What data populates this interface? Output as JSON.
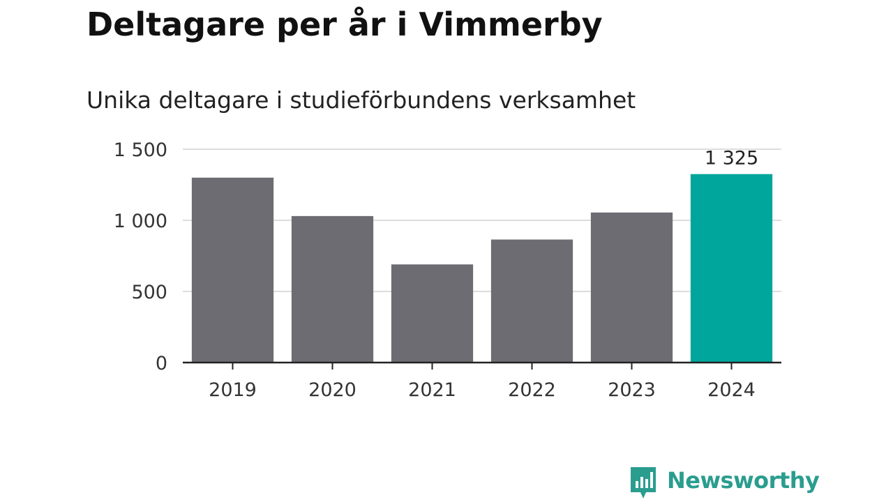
{
  "header": {
    "title": "Deltagare per år i Vimmerby",
    "subtitle": "Unika deltagare i studieförbundens verksamhet"
  },
  "brand": {
    "name": "Newsworthy",
    "icon": "bar-chart-speech-bubble-icon",
    "color": "#2a9d8f"
  },
  "chart_data": {
    "type": "bar",
    "title": "Deltagare per år i Vimmerby",
    "subtitle": "Unika deltagare i studieförbundens verksamhet",
    "xlabel": "",
    "ylabel": "",
    "categories": [
      "2019",
      "2020",
      "2021",
      "2022",
      "2023",
      "2024"
    ],
    "values": [
      1300,
      1030,
      690,
      865,
      1055,
      1325
    ],
    "ylim": [
      0,
      1500
    ],
    "yticks": [
      0,
      500,
      1000,
      1500
    ],
    "ytick_labels": [
      "0",
      "500",
      "1 000",
      "1 500"
    ],
    "grid": true,
    "legend": "none",
    "data_labels": [
      {
        "category": "2024",
        "text": "1 325"
      }
    ],
    "colors": {
      "default": "#6d6c72",
      "highlight": "#00a69c",
      "highlight_category": "2024",
      "gridline": "#dddddd",
      "axis": "#222222",
      "tick_text": "#333333"
    }
  }
}
